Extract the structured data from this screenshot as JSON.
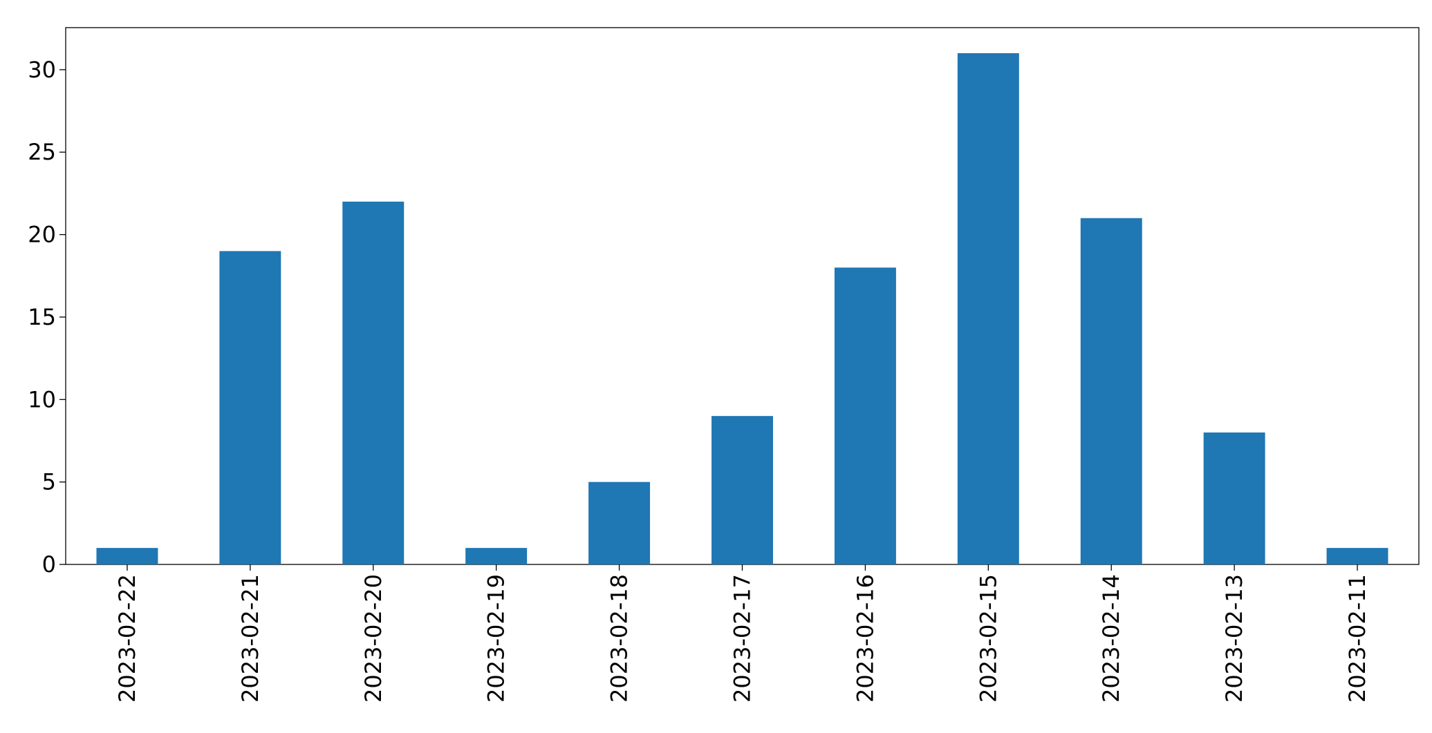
{
  "chart_data": {
    "type": "bar",
    "categories": [
      "2023-02-22",
      "2023-02-21",
      "2023-02-20",
      "2023-02-19",
      "2023-02-18",
      "2023-02-17",
      "2023-02-16",
      "2023-02-15",
      "2023-02-14",
      "2023-02-13",
      "2023-02-11"
    ],
    "values": [
      1,
      19,
      22,
      1,
      5,
      9,
      18,
      31,
      21,
      8,
      1
    ],
    "color": "#1f77b4",
    "ylim": [
      0,
      32.55
    ],
    "yticks": [
      0,
      5,
      10,
      15,
      20,
      25,
      30
    ],
    "grid": false
  }
}
